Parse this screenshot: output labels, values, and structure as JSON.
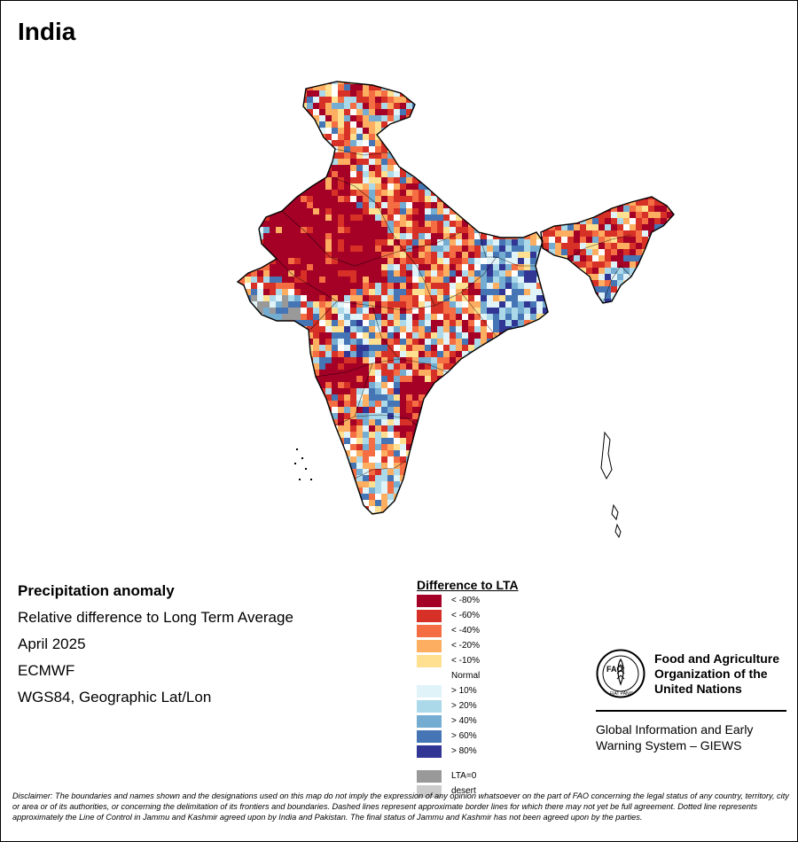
{
  "title": "India",
  "info": {
    "heading": "Precipitation anomaly",
    "subtitle": "Relative difference to Long Term Average",
    "period": "April 2025",
    "source": "ECMWF",
    "projection": "WGS84, Geographic Lat/Lon"
  },
  "legend": {
    "title": "Difference to LTA",
    "items": [
      {
        "label": "< -80%",
        "color": "#a50026"
      },
      {
        "label": "< -60%",
        "color": "#d73027"
      },
      {
        "label": "< -40%",
        "color": "#f46d43"
      },
      {
        "label": "< -20%",
        "color": "#fdae61"
      },
      {
        "label": "< -10%",
        "color": "#fee090"
      },
      {
        "label": "Normal",
        "color": "#ffffff"
      },
      {
        "label": "> 10%",
        "color": "#e0f3f8"
      },
      {
        "label": "> 20%",
        "color": "#abd9e9"
      },
      {
        "label": "> 40%",
        "color": "#74add1"
      },
      {
        "label": "> 60%",
        "color": "#4575b4"
      },
      {
        "label": "> 80%",
        "color": "#313695"
      },
      {
        "label": "LTA=0",
        "color": "#999999"
      },
      {
        "label": "desert",
        "color": "#cccccc"
      }
    ]
  },
  "logo": {
    "letters": "FAO",
    "motto": "FIAT PANIS",
    "org_lines": [
      "Food and Agriculture",
      "Organization of the",
      "United Nations"
    ],
    "giews_lines": [
      "Global Information and Early",
      "Warning System – GIEWS"
    ]
  },
  "disclaimer": "Disclaimer: The boundaries and names shown and the designations used on this map do not imply the expression of any opinion whatsoever on the part of FAO concerning the legal status of any country, territory, city or area or of its authorities, or concerning the delimitation of its frontiers and boundaries. Dashed lines represent approximate border lines for which there may not yet be full agreement. Dotted line represents approximately the Line of Control in Jammu and Kashmir agreed upon by India and Pakistan. The final status of Jammu and Kashmir has not been agreed upon by the parties.",
  "map": {
    "palette": {
      "r80": "#a50026",
      "r60": "#d73027",
      "r40": "#f46d43",
      "r20": "#fdae61",
      "r10": "#fee090",
      "normal": "#ffffff",
      "b10": "#e0f3f8",
      "b20": "#abd9e9",
      "b40": "#74add1",
      "b60": "#4575b4",
      "b80": "#313695",
      "lta0": "#999999"
    }
  }
}
